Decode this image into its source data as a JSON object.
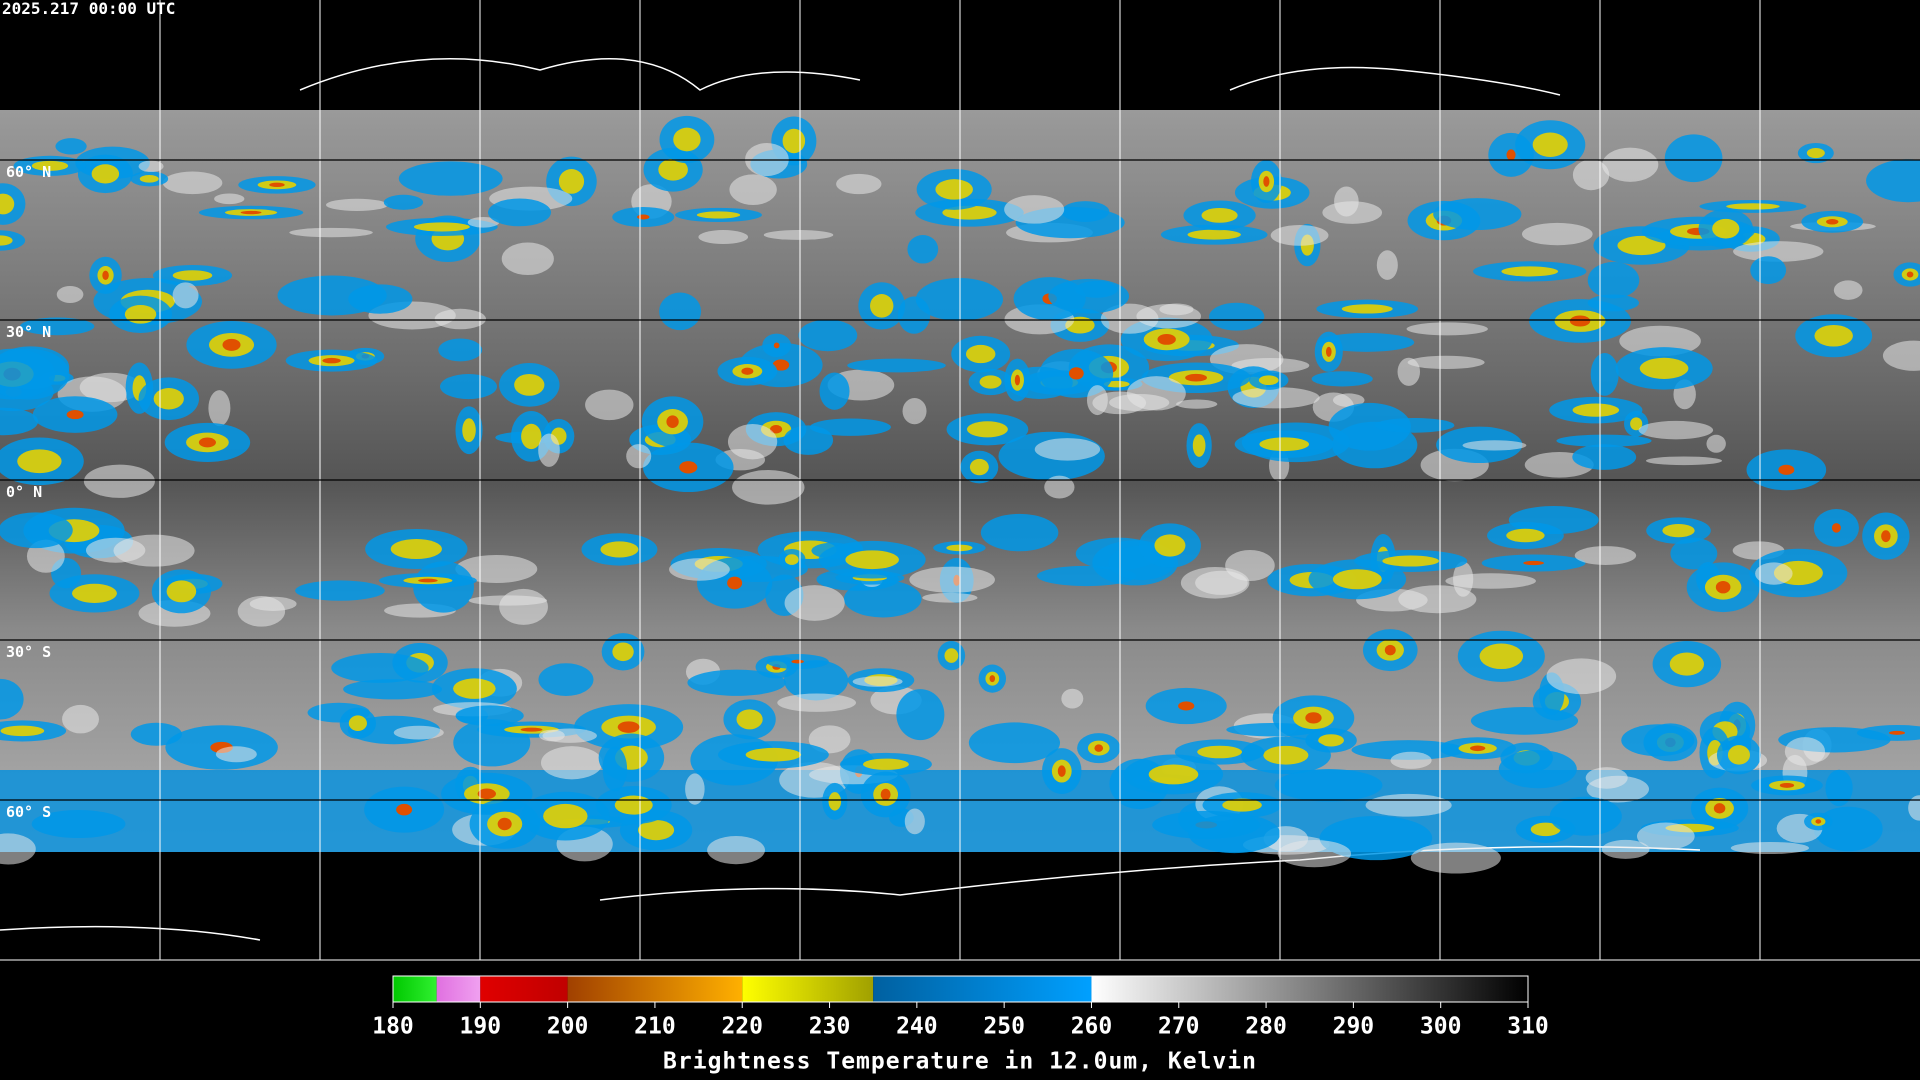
{
  "header": {
    "timestamp": "2025.217 00:00 UTC"
  },
  "map": {
    "latitude_lines": [
      {
        "value": 60,
        "label": "60° N"
      },
      {
        "value": 30,
        "label": "30° N"
      },
      {
        "value": 0,
        "label": "0° N"
      },
      {
        "value": -30,
        "label": "30° S"
      },
      {
        "value": -60,
        "label": "60° S"
      }
    ]
  },
  "colorbar": {
    "title": "Brightness Temperature in 12.0um, Kelvin",
    "range": [
      180,
      310
    ],
    "ticks": [
      180,
      190,
      200,
      210,
      220,
      230,
      240,
      250,
      260,
      270,
      280,
      290,
      300,
      310
    ],
    "segments": [
      {
        "from": 180,
        "to": 185,
        "colors": [
          "#00c800",
          "#30f030"
        ]
      },
      {
        "from": 185,
        "to": 190,
        "colors": [
          "#e070e0",
          "#f0a0f0"
        ]
      },
      {
        "from": 190,
        "to": 200,
        "colors": [
          "#e00000",
          "#c00000"
        ]
      },
      {
        "from": 200,
        "to": 220,
        "colors": [
          "#a04000",
          "#ffb000"
        ]
      },
      {
        "from": 220,
        "to": 235,
        "colors": [
          "#ffff00",
          "#a0a000"
        ]
      },
      {
        "from": 235,
        "to": 260,
        "colors": [
          "#0060a0",
          "#00a0ff"
        ]
      },
      {
        "from": 260,
        "to": 310,
        "colors": [
          "#ffffff",
          "#000000"
        ]
      }
    ]
  }
}
